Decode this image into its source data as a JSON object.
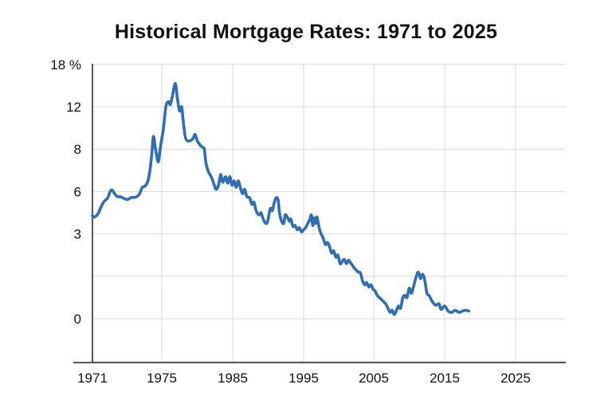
{
  "chart_data": {
    "type": "line",
    "title": "Historical Mortgage Rates: 1971 to 2025",
    "xlabel": "",
    "ylabel": "",
    "grid": true,
    "y_ticks": [
      {
        "label": "18 %",
        "slot": 6
      },
      {
        "label": "12",
        "slot": 5
      },
      {
        "label": "8",
        "slot": 4
      },
      {
        "label": "6",
        "slot": 3
      },
      {
        "label": "3",
        "slot": 2
      },
      {
        "label": "",
        "slot": 1
      },
      {
        "label": "0",
        "slot": 0
      },
      {
        "label": "",
        "slot": -1
      }
    ],
    "x_ticks": [
      {
        "label": "1971",
        "slot": 0
      },
      {
        "label": "1975",
        "slot": 1
      },
      {
        "label": "1985",
        "slot": 2
      },
      {
        "label": "1995",
        "slot": 3
      },
      {
        "label": "2005",
        "slot": 4
      },
      {
        "label": "2015",
        "slot": 5
      },
      {
        "label": "2025",
        "slot": 6
      }
    ],
    "series": [
      {
        "name": "",
        "color": "#2f6db5",
        "points": [
          [
            0.0,
            2.43
          ],
          [
            0.03,
            2.4
          ],
          [
            0.08,
            2.48
          ],
          [
            0.12,
            2.62
          ],
          [
            0.16,
            2.75
          ],
          [
            0.22,
            2.85
          ],
          [
            0.25,
            2.98
          ],
          [
            0.28,
            3.04
          ],
          [
            0.32,
            2.95
          ],
          [
            0.36,
            2.88
          ],
          [
            0.4,
            2.88
          ],
          [
            0.44,
            2.85
          ],
          [
            0.48,
            2.82
          ],
          [
            0.52,
            2.82
          ],
          [
            0.56,
            2.86
          ],
          [
            0.6,
            2.86
          ],
          [
            0.64,
            2.88
          ],
          [
            0.68,
            2.95
          ],
          [
            0.72,
            3.1
          ],
          [
            0.76,
            3.13
          ],
          [
            0.8,
            3.25
          ],
          [
            0.83,
            3.5
          ],
          [
            0.86,
            3.95
          ],
          [
            0.88,
            4.3
          ],
          [
            0.91,
            4.0
          ],
          [
            0.95,
            3.7
          ],
          [
            0.98,
            4.05
          ],
          [
            1.02,
            4.45
          ],
          [
            1.06,
            5.02
          ],
          [
            1.1,
            5.12
          ],
          [
            1.12,
            5.05
          ],
          [
            1.15,
            5.25
          ],
          [
            1.19,
            5.55
          ],
          [
            1.22,
            5.2
          ],
          [
            1.25,
            4.9
          ],
          [
            1.28,
            5.0
          ],
          [
            1.3,
            4.7
          ],
          [
            1.33,
            4.3
          ],
          [
            1.36,
            4.2
          ],
          [
            1.4,
            4.2
          ],
          [
            1.44,
            4.25
          ],
          [
            1.47,
            4.35
          ],
          [
            1.5,
            4.2
          ],
          [
            1.54,
            4.1
          ],
          [
            1.57,
            4.05
          ],
          [
            1.6,
            4.0
          ],
          [
            1.62,
            3.7
          ],
          [
            1.65,
            3.5
          ],
          [
            1.68,
            3.4
          ],
          [
            1.71,
            3.3
          ],
          [
            1.74,
            3.15
          ],
          [
            1.77,
            3.05
          ],
          [
            1.8,
            3.15
          ],
          [
            1.83,
            3.4
          ],
          [
            1.86,
            3.22
          ],
          [
            1.9,
            3.35
          ],
          [
            1.93,
            3.2
          ],
          [
            1.96,
            3.35
          ],
          [
            1.99,
            3.15
          ],
          [
            2.02,
            3.25
          ],
          [
            2.05,
            3.1
          ],
          [
            2.08,
            3.25
          ],
          [
            2.11,
            3.08
          ],
          [
            2.14,
            2.95
          ],
          [
            2.17,
            3.05
          ],
          [
            2.2,
            2.88
          ],
          [
            2.24,
            2.85
          ],
          [
            2.27,
            2.7
          ],
          [
            2.3,
            2.75
          ],
          [
            2.33,
            2.55
          ],
          [
            2.37,
            2.45
          ],
          [
            2.4,
            2.5
          ],
          [
            2.42,
            2.4
          ],
          [
            2.45,
            2.28
          ],
          [
            2.48,
            2.25
          ],
          [
            2.5,
            2.35
          ],
          [
            2.53,
            2.6
          ],
          [
            2.56,
            2.55
          ],
          [
            2.58,
            2.7
          ],
          [
            2.61,
            2.85
          ],
          [
            2.64,
            2.8
          ],
          [
            2.66,
            2.5
          ],
          [
            2.69,
            2.3
          ],
          [
            2.72,
            2.25
          ],
          [
            2.74,
            2.45
          ],
          [
            2.77,
            2.4
          ],
          [
            2.8,
            2.3
          ],
          [
            2.82,
            2.35
          ],
          [
            2.85,
            2.18
          ],
          [
            2.88,
            2.2
          ],
          [
            2.91,
            2.1
          ],
          [
            2.94,
            2.15
          ],
          [
            2.97,
            2.05
          ],
          [
            3.0,
            2.1
          ],
          [
            3.03,
            2.15
          ],
          [
            3.06,
            2.25
          ],
          [
            3.09,
            2.35
          ],
          [
            3.11,
            2.45
          ],
          [
            3.13,
            2.2
          ],
          [
            3.15,
            2.38
          ],
          [
            3.17,
            2.25
          ],
          [
            3.19,
            2.4
          ],
          [
            3.22,
            2.15
          ],
          [
            3.25,
            2.0
          ],
          [
            3.28,
            1.9
          ],
          [
            3.31,
            1.75
          ],
          [
            3.34,
            1.8
          ],
          [
            3.37,
            1.7
          ],
          [
            3.4,
            1.55
          ],
          [
            3.43,
            1.6
          ],
          [
            3.46,
            1.45
          ],
          [
            3.49,
            1.5
          ],
          [
            3.52,
            1.3
          ],
          [
            3.55,
            1.35
          ],
          [
            3.58,
            1.4
          ],
          [
            3.61,
            1.3
          ],
          [
            3.64,
            1.38
          ],
          [
            3.67,
            1.32
          ],
          [
            3.7,
            1.25
          ],
          [
            3.72,
            1.2
          ],
          [
            3.75,
            1.15
          ],
          [
            3.78,
            1.1
          ],
          [
            3.81,
            1.08
          ],
          [
            3.84,
            0.9
          ],
          [
            3.87,
            0.8
          ],
          [
            3.9,
            0.85
          ],
          [
            3.93,
            0.75
          ],
          [
            3.96,
            0.8
          ],
          [
            3.99,
            0.7
          ],
          [
            4.02,
            0.65
          ],
          [
            4.05,
            0.55
          ],
          [
            4.08,
            0.5
          ],
          [
            4.11,
            0.45
          ],
          [
            4.14,
            0.4
          ],
          [
            4.17,
            0.35
          ],
          [
            4.2,
            0.25
          ],
          [
            4.23,
            0.15
          ],
          [
            4.26,
            0.2
          ],
          [
            4.29,
            0.1
          ],
          [
            4.32,
            0.2
          ],
          [
            4.35,
            0.3
          ],
          [
            4.38,
            0.25
          ],
          [
            4.41,
            0.5
          ],
          [
            4.44,
            0.55
          ],
          [
            4.47,
            0.5
          ],
          [
            4.5,
            0.72
          ],
          [
            4.53,
            0.6
          ],
          [
            4.56,
            0.75
          ],
          [
            4.6,
            1.0
          ],
          [
            4.63,
            1.1
          ],
          [
            4.66,
            0.95
          ],
          [
            4.69,
            1.05
          ],
          [
            4.72,
            0.9
          ],
          [
            4.75,
            0.6
          ],
          [
            4.78,
            0.55
          ],
          [
            4.81,
            0.45
          ],
          [
            4.85,
            0.35
          ],
          [
            4.88,
            0.32
          ],
          [
            4.92,
            0.35
          ],
          [
            4.95,
            0.22
          ],
          [
            5.0,
            0.3
          ],
          [
            5.05,
            0.18
          ],
          [
            5.1,
            0.15
          ],
          [
            5.15,
            0.2
          ],
          [
            5.2,
            0.15
          ],
          [
            5.25,
            0.18
          ],
          [
            5.3,
            0.2
          ],
          [
            5.34,
            0.18
          ]
        ]
      }
    ]
  }
}
